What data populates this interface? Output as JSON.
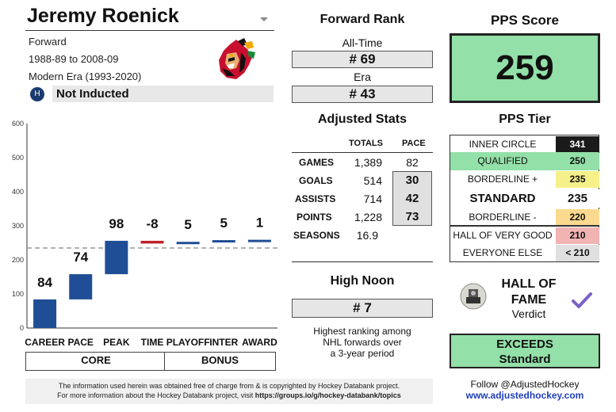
{
  "player": {
    "name": "Jeremy Roenick",
    "position": "Forward",
    "years": "1988-89 to 2008-09",
    "era": "Modern Era (1993-2020)",
    "induction_status": "Not Inducted",
    "team_logo_icon": "blackhawks-logo"
  },
  "chart_data": {
    "type": "bar",
    "subtype": "waterfall",
    "categories": [
      "CAREER",
      "PACE",
      "PEAK",
      "TIME",
      "PLAYOFF",
      "INTER",
      "AWARD"
    ],
    "values": [
      84,
      74,
      98,
      -8,
      5,
      5,
      1
    ],
    "value_labels": [
      "84",
      "74",
      "98",
      "-8",
      "5",
      "5",
      "1"
    ],
    "ylim": [
      0,
      600
    ],
    "yticks": [
      "0",
      "100",
      "200",
      "300",
      "400",
      "500",
      "600"
    ],
    "reference_line": 235,
    "groups": [
      {
        "label": "CORE"
      },
      {
        "label": "BONUS"
      }
    ],
    "colors": {
      "positive": "#1f4e96",
      "negative": "#c0202a",
      "reference": "#999999"
    }
  },
  "forward_rank": {
    "title": "Forward Rank",
    "all_time_label": "All-Time",
    "all_time_value": "# 69",
    "era_label": "Era",
    "era_value": "# 43"
  },
  "adjusted_stats": {
    "title": "Adjusted Stats",
    "col_totals": "TOTALS",
    "col_pace": "PACE",
    "rows": [
      {
        "label": "GAMES",
        "total": "1,389",
        "pace": "82"
      },
      {
        "label": "GOALS",
        "total": "514",
        "pace": "30"
      },
      {
        "label": "ASSISTS",
        "total": "714",
        "pace": "42"
      },
      {
        "label": "POINTS",
        "total": "1,228",
        "pace": "73"
      },
      {
        "label": "SEASONS",
        "total": "16.9",
        "pace": ""
      }
    ]
  },
  "high_noon": {
    "title": "High Noon",
    "value": "# 7",
    "desc1": "Highest ranking among",
    "desc2": "NHL forwards over",
    "desc3": "a 3-year period"
  },
  "pps": {
    "title": "PPS Score",
    "score": "259",
    "tier_title": "PPS Tier",
    "tiers": [
      {
        "name": "INNER CIRCLE",
        "value": "341",
        "bg": "#ffffff",
        "val_bg": "#1a1a1a",
        "val_color": "#ffffff"
      },
      {
        "name": "QUALIFIED",
        "value": "250",
        "bg": "#93e0a8",
        "val_bg": "#93e0a8",
        "val_color": "#111111"
      },
      {
        "name": "BORDERLINE +",
        "value": "235",
        "bg": "#ffffff",
        "val_bg": "#f6f08a",
        "val_color": "#111111"
      },
      {
        "name": "STANDARD",
        "value": "235",
        "bg": "#ffffff",
        "val_bg": "#ffffff",
        "val_color": "#111111"
      },
      {
        "name": "BORDERLINE -",
        "value": "220",
        "bg": "#ffffff",
        "val_bg": "#fbd98e",
        "val_color": "#111111"
      },
      {
        "name": "HALL OF VERY GOOD",
        "value": "210",
        "bg": "#ffffff",
        "val_bg": "#f2b3b3",
        "val_color": "#111111"
      },
      {
        "name": "EVERYONE ELSE",
        "value": "< 210",
        "bg": "#ffffff",
        "val_bg": "#e0e0e0",
        "val_color": "#111111"
      }
    ],
    "score_bg": "#93e0a8"
  },
  "verdict": {
    "line1": "HALL OF",
    "line2": "FAME",
    "label": "Verdict",
    "icon": "checkmark-icon",
    "result_line1": "EXCEEDS",
    "result_line2": "Standard"
  },
  "follow": {
    "text": "Follow @AdjustedHockey",
    "url": "www.adjustedhockey.com"
  },
  "footer": {
    "line1": "The information used herein was obtained free of charge from & is copyrighted by Hockey Databank project.",
    "line2_prefix": "For more information about the Hockey Databank project, visit ",
    "line2_link": "https://groups.io/g/hockey-databank/topics"
  }
}
